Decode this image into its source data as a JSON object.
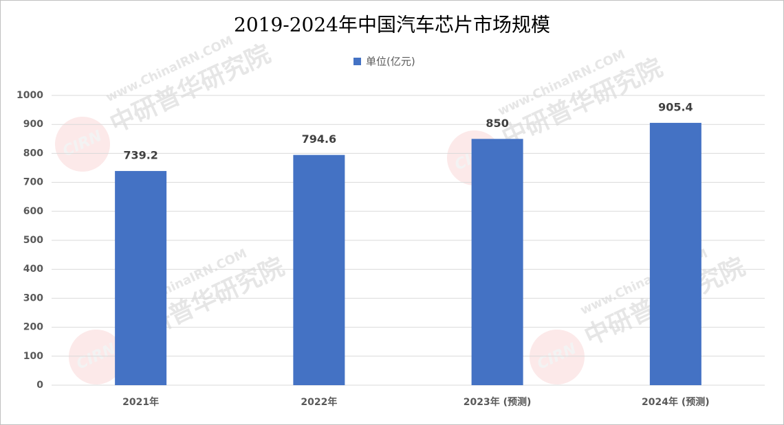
{
  "chart_data": {
    "type": "bar",
    "title": "2019-2024年中国汽车芯片市场规模",
    "categories": [
      "2021年",
      "2022年",
      "2023年 (预测)",
      "2024年 (预测)"
    ],
    "series": [
      {
        "name": "单位(亿元)",
        "color": "#4472c4",
        "values": [
          739.2,
          794.6,
          850,
          905.4
        ]
      }
    ],
    "ylim": [
      0,
      1000
    ],
    "yticks": [
      0,
      100,
      200,
      300,
      400,
      500,
      600,
      700,
      800,
      900,
      1000
    ],
    "grid": true,
    "legend": "top",
    "watermark": {
      "logo": "CIRN",
      "url": "www.ChinaIRN.COM",
      "name": "中研普华研究院"
    }
  }
}
